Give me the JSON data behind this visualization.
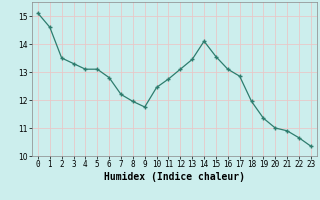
{
  "x": [
    0,
    1,
    2,
    3,
    4,
    5,
    6,
    7,
    8,
    9,
    10,
    11,
    12,
    13,
    14,
    15,
    16,
    17,
    18,
    19,
    20,
    21,
    22,
    23
  ],
  "y": [
    15.1,
    14.6,
    13.5,
    13.3,
    13.1,
    13.1,
    12.8,
    12.2,
    11.95,
    11.75,
    12.45,
    12.75,
    13.1,
    13.45,
    14.1,
    13.55,
    13.1,
    12.85,
    11.95,
    11.35,
    11.0,
    10.9,
    10.65,
    10.35
  ],
  "xlabel": "Humidex (Indice chaleur)",
  "xlim": [
    -0.5,
    23.5
  ],
  "ylim": [
    10,
    15.5
  ],
  "yticks": [
    10,
    11,
    12,
    13,
    14,
    15
  ],
  "xticks": [
    0,
    1,
    2,
    3,
    4,
    5,
    6,
    7,
    8,
    9,
    10,
    11,
    12,
    13,
    14,
    15,
    16,
    17,
    18,
    19,
    20,
    21,
    22,
    23
  ],
  "bg_color": "#cceeed",
  "line_color": "#2e7d6e",
  "marker_color": "#2e7d6e",
  "grid_color": "#e8c8c8",
  "xlabel_fontsize": 7,
  "tick_fontsize": 5.5
}
